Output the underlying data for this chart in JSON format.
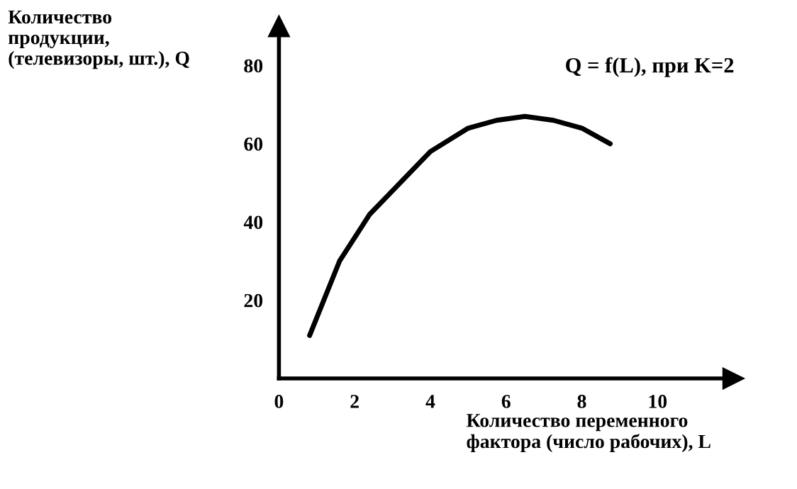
{
  "chart_data": {
    "type": "line",
    "ylabel": "Количество\nпродукции,\n(телевизоры, шт.), Q",
    "xlabel": "Количество переменного\nфактора (число рабочих), L",
    "x": [
      0.81,
      1.6,
      2.4,
      3.1,
      4.0,
      5.0,
      5.75,
      6.5,
      7.25,
      8.0,
      8.75
    ],
    "series": [
      {
        "name": "Q = f(L), при K=2",
        "color": "#000000",
        "values": [
          11,
          30,
          42,
          49,
          58,
          64,
          66,
          67,
          66,
          64,
          60
        ]
      }
    ],
    "xlim": [
      0,
      12
    ],
    "ylim": [
      0,
      90
    ],
    "xticks": [
      0,
      2,
      4,
      6,
      8,
      10
    ],
    "yticks": [
      20,
      40,
      60,
      80
    ],
    "grid": false,
    "legend": false,
    "marker": "none",
    "line_style": "solid"
  }
}
